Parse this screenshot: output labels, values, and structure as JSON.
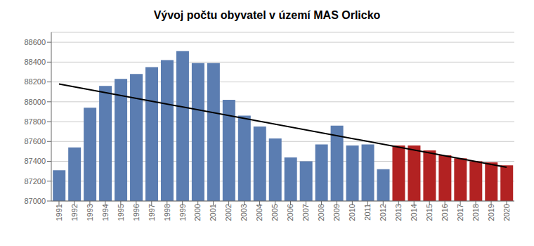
{
  "chart_data": {
    "type": "bar",
    "title": "Vývoj počtu obyvatel v území MAS Orlicko",
    "categories": [
      "1991",
      "1992",
      "1993",
      "1994",
      "1995",
      "1996",
      "1997",
      "1998",
      "1999",
      "2000",
      "2001",
      "2002",
      "2003",
      "2004",
      "2005",
      "2006",
      "2007",
      "2008",
      "2009",
      "2010",
      "2011",
      "2012",
      "2013",
      "2014",
      "2015",
      "2016",
      "2017",
      "2018",
      "2019",
      "2020"
    ],
    "series": [
      {
        "type": "bar",
        "values": [
          87310,
          87540,
          87940,
          88160,
          88230,
          88280,
          88350,
          88420,
          88510,
          88390,
          88390,
          88020,
          87860,
          87750,
          87630,
          87440,
          87400,
          87570,
          87760,
          87560,
          87570,
          87320,
          87560,
          87560,
          87510,
          87460,
          87430,
          87400,
          87390,
          87360
        ],
        "colors": [
          "#5B7DB1",
          "#5B7DB1",
          "#5B7DB1",
          "#5B7DB1",
          "#5B7DB1",
          "#5B7DB1",
          "#5B7DB1",
          "#5B7DB1",
          "#5B7DB1",
          "#5B7DB1",
          "#5B7DB1",
          "#5B7DB1",
          "#5B7DB1",
          "#5B7DB1",
          "#5B7DB1",
          "#5B7DB1",
          "#5B7DB1",
          "#5B7DB1",
          "#5B7DB1",
          "#5B7DB1",
          "#5B7DB1",
          "#5B7DB1",
          "#B22222",
          "#B22222",
          "#B22222",
          "#B22222",
          "#B22222",
          "#B22222",
          "#B22222",
          "#B22222"
        ]
      },
      {
        "type": "line",
        "color": "#000000",
        "x": [
          "1991",
          "2020"
        ],
        "values": [
          88180,
          87340
        ]
      }
    ],
    "ylim": [
      87000,
      88700
    ],
    "yticks": [
      87000,
      87200,
      87400,
      87600,
      87800,
      88000,
      88200,
      88400,
      88600
    ],
    "grid": true
  }
}
